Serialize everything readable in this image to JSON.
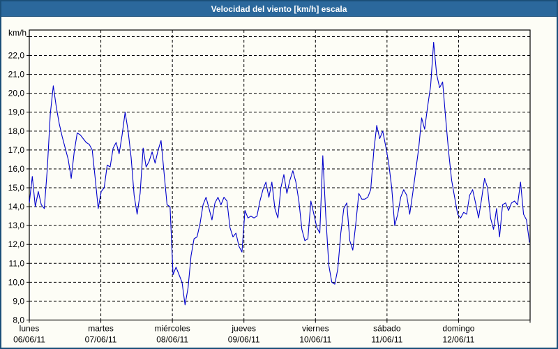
{
  "header": {
    "title": "Velocidad del viento [km/h] escala"
  },
  "chart_data": {
    "type": "line",
    "title": "Velocidad del viento [km/h] escala",
    "unit_label": "km/h",
    "line_color": "#0000cc",
    "grid_color": "#000000",
    "frame_color": "#000000",
    "title_bar_color": "#2b689c",
    "window_border_color": "#1b4f79",
    "background_color": "#fdfdf6",
    "ylim": [
      8,
      23.35
    ],
    "grid": true,
    "ytick_values": [
      8,
      9,
      10,
      11,
      12,
      13,
      14,
      15,
      16,
      17,
      18,
      19,
      20,
      21,
      22
    ],
    "ytick_labels": [
      "8,0",
      "9,0",
      "10,0",
      "11,0",
      "12,0",
      "13,0",
      "14,0",
      "15,0",
      "16,0",
      "17,0",
      "18,0",
      "19,0",
      "20,0",
      "21,0",
      "22,0"
    ],
    "ygrid_values": [
      9,
      10,
      11,
      12,
      13,
      14,
      15,
      16,
      17,
      18,
      19,
      20,
      21,
      22,
      23
    ],
    "days": [
      {
        "name": "lunes",
        "date": "06/06/11"
      },
      {
        "name": "martes",
        "date": "07/06/11"
      },
      {
        "name": "miércoles",
        "date": "08/06/11"
      },
      {
        "name": "jueves",
        "date": "09/06/11"
      },
      {
        "name": "viernes",
        "date": "10/06/11"
      },
      {
        "name": "sábado",
        "date": "11/06/11"
      },
      {
        "name": "domingo",
        "date": "12/06/11"
      }
    ],
    "series": [
      {
        "name": "lunes 06/06/11",
        "values": [
          14.2,
          15.6,
          14.0,
          14.8,
          14.1,
          13.9,
          16.0,
          18.9,
          20.4,
          19.3,
          18.4,
          17.7,
          17.1,
          16.5,
          15.5,
          16.9,
          17.9,
          17.8,
          17.6,
          17.4,
          17.3,
          17.0,
          15.5,
          13.9
        ]
      },
      {
        "name": "martes 07/06/11",
        "values": [
          14.8,
          15.0,
          16.2,
          16.1,
          17.1,
          17.4,
          16.8,
          17.8,
          19.0,
          18.0,
          16.6,
          14.6,
          13.6,
          14.7,
          17.1,
          16.1,
          16.4,
          16.9,
          16.3,
          17.0,
          17.5,
          15.8,
          14.1,
          14.0
        ]
      },
      {
        "name": "miércoles 08/06/11",
        "values": [
          10.4,
          10.8,
          10.4,
          10.0,
          8.8,
          9.7,
          11.4,
          12.3,
          12.4,
          13.1,
          14.1,
          14.5,
          13.9,
          13.3,
          14.2,
          14.5,
          14.1,
          14.5,
          14.3,
          12.9,
          12.4,
          12.6,
          11.9,
          11.6
        ]
      },
      {
        "name": "jueves 09/06/11",
        "values": [
          13.8,
          13.4,
          13.5,
          13.4,
          13.5,
          14.3,
          14.9,
          15.3,
          14.5,
          15.3,
          13.9,
          13.4,
          15.0,
          15.7,
          14.7,
          15.4,
          15.9,
          15.3,
          14.3,
          12.8,
          12.2,
          12.3,
          14.3,
          13.6
        ]
      },
      {
        "name": "viernes 10/06/11",
        "values": [
          12.9,
          12.6,
          16.7,
          13.5,
          10.9,
          10.0,
          9.9,
          10.7,
          12.6,
          13.9,
          14.2,
          12.2,
          11.7,
          13.1,
          14.7,
          14.4,
          14.4,
          14.5,
          14.9,
          16.9,
          18.3,
          17.6,
          18.0,
          17.2
        ]
      },
      {
        "name": "sábado 11/06/11",
        "values": [
          16.3,
          15.0,
          13.0,
          13.6,
          14.5,
          14.9,
          14.6,
          13.6,
          14.7,
          15.9,
          17.1,
          18.7,
          18.1,
          19.3,
          20.4,
          22.7,
          21.0,
          20.3,
          20.6,
          18.7,
          16.9,
          15.4,
          14.5,
          13.6
        ]
      },
      {
        "name": "domingo 12/06/11",
        "values": [
          13.4,
          13.7,
          13.6,
          14.6,
          14.9,
          14.2,
          13.4,
          14.4,
          15.5,
          15.0,
          13.4,
          12.8,
          13.9,
          12.4,
          14.1,
          14.2,
          13.8,
          14.2,
          14.3,
          14.1,
          15.3,
          13.6,
          13.3,
          12.1
        ]
      }
    ]
  }
}
